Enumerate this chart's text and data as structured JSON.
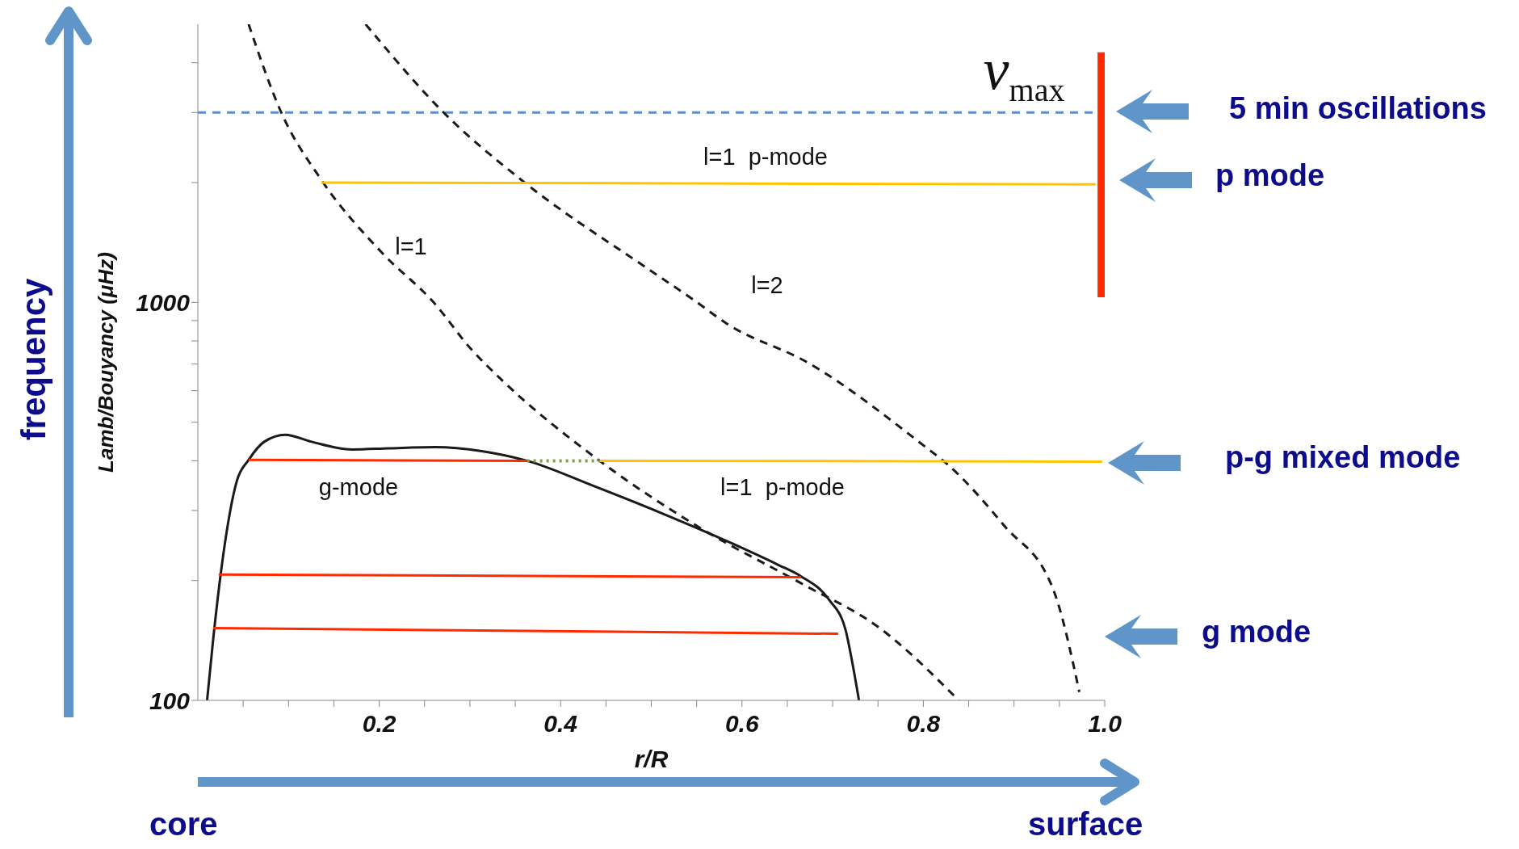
{
  "chart_data": {
    "type": "line",
    "xlabel": "r/R",
    "ylabel": "Lamb/Bouyancy (μHz)",
    "log": "y",
    "xlim": [
      0,
      1
    ],
    "ylim": [
      100,
      5000
    ],
    "xticks": [
      {
        "value": 0.05,
        "label": null
      },
      {
        "value": 0.1,
        "label": null
      },
      {
        "value": 0.15,
        "label": null
      },
      0.2,
      {
        "value": 0.25,
        "label": null
      },
      {
        "value": 0.3,
        "label": null
      },
      {
        "value": 0.35,
        "label": null
      },
      0.4,
      {
        "value": 0.45,
        "label": null
      },
      {
        "value": 0.5,
        "label": null
      },
      {
        "value": 0.55,
        "label": null
      },
      0.6,
      {
        "value": 0.65,
        "label": null
      },
      {
        "value": 0.7,
        "label": null
      },
      {
        "value": 0.75,
        "label": null
      },
      0.8,
      {
        "value": 0.85,
        "label": null
      },
      {
        "value": 0.9,
        "label": null
      },
      {
        "value": 0.95,
        "label": null
      },
      {
        "value": 1,
        "label": "1.0"
      }
    ],
    "yticks": [
      100,
      {
        "value": 200,
        "label": null
      },
      {
        "value": 300,
        "label": null
      },
      {
        "value": 400,
        "label": null
      },
      {
        "value": 500,
        "label": null
      },
      {
        "value": 600,
        "label": null
      },
      {
        "value": 700,
        "label": null
      },
      {
        "value": 800,
        "label": null
      },
      {
        "value": 900,
        "label": null
      },
      1000,
      {
        "value": 2000,
        "label": null
      },
      {
        "value": 3000,
        "label": null
      },
      {
        "value": 4000,
        "label": null
      }
    ],
    "marker": "none",
    "series": [
      {
        "color": "#1a1a1a",
        "line_style": "solid",
        "x": [
          0.0102,
          0.017,
          0.028,
          0.043,
          0.056,
          0.0735,
          0.0965,
          0.1245,
          0.17,
          0.211,
          0.262,
          0.313,
          0.363,
          0.436,
          0.512,
          0.589,
          0.64,
          0.665,
          0.696,
          0.714,
          0.7215,
          0.729
        ],
        "values": [
          100,
          143,
          232,
          356,
          402,
          447,
          465,
          447,
          427,
          430,
          433,
          423,
          400,
          346,
          295,
          248,
          219,
          205,
          179,
          151,
          125,
          100
        ]
      },
      {
        "color": "#1a1a1a",
        "line_style": "dashed",
        "x": [
          0.056,
          0.092,
          0.136,
          0.203,
          0.26,
          0.302,
          0.334,
          0.443,
          0.553,
          0.665,
          0.75,
          0.839
        ],
        "values": [
          5000,
          3000,
          2035,
          1333,
          1000,
          760,
          642,
          400,
          272,
          197,
          153,
          100
        ]
      },
      {
        "color": "#1a1a1a",
        "line_style": "dashed",
        "x": [
          0.185,
          0.271,
          0.358,
          0.495,
          0.548,
          0.583,
          0.672,
          0.806,
          0.822,
          0.889,
          0.944,
          0.972
        ],
        "values": [
          5000,
          3000,
          2020,
          1220,
          1010,
          885,
          707,
          427,
          400,
          275,
          188,
          105
        ]
      },
      {
        "color": "#ffc400",
        "line_style": "solid",
        "x": [
          0.136,
          0.99
        ],
        "values": [
          2000,
          1980
        ]
      },
      {
        "color": "#ffc400",
        "line_style": "solid",
        "x": [
          0.443,
          0.997
        ],
        "values": [
          400,
          398
        ]
      },
      {
        "color": "#7aa53a",
        "line_style": "dotted",
        "x": [
          0.363,
          0.443
        ],
        "values": [
          400,
          400
        ]
      },
      {
        "color": "#ff2a00",
        "line_style": "solid",
        "x": [
          0.056,
          0.363
        ],
        "values": [
          402,
          400
        ]
      },
      {
        "color": "#ff2a00",
        "line_style": "solid",
        "x": [
          0.023,
          0.665
        ],
        "values": [
          207,
          204
        ]
      },
      {
        "color": "#ff2a00",
        "line_style": "solid",
        "x": [
          0.017,
          0.706
        ],
        "values": [
          152,
          147
        ]
      },
      {
        "color": "#ff2a00",
        "line_style": "solid",
        "x": [
          0.997,
          0.997
        ],
        "values": [
          4250,
          1030
        ]
      }
    ],
    "ref_lines": [
      {
        "axis": "y",
        "value": 3000,
        "color": "#5b8fc9",
        "line_style": "dashed"
      }
    ],
    "annotations": [
      "l=1  p-mode",
      "l=1",
      "l=2",
      "g-mode",
      "l=1  p-mode",
      "ν$_{max}$",
      "frequency",
      "core",
      "surface",
      "5 min oscillations",
      "p mode",
      "p-g mixed mode",
      "g mode"
    ]
  }
}
